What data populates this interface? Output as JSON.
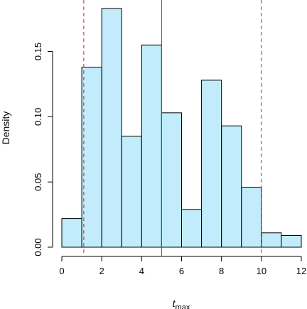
{
  "chart_data": {
    "type": "histogram",
    "title": "",
    "xlabel": "t",
    "xlabel_subscript": "max",
    "ylabel": "Density",
    "xlim": [
      0,
      12
    ],
    "ylim": [
      0,
      0.18
    ],
    "x_ticks": [
      0,
      2,
      4,
      6,
      8,
      10,
      12
    ],
    "y_ticks": [
      0.0,
      0.05,
      0.1,
      0.15
    ],
    "y_tick_labels": [
      "0.00",
      "0.05",
      "0.10",
      "0.15"
    ],
    "bin_edges": [
      0,
      1,
      2,
      3,
      4,
      5,
      6,
      7,
      8,
      9,
      10,
      11,
      12
    ],
    "values": [
      0.022,
      0.138,
      0.183,
      0.085,
      0.155,
      0.103,
      0.029,
      0.128,
      0.093,
      0.046,
      0.011,
      0.009
    ],
    "bar_color": "#c2ecfb",
    "vertical_lines": [
      {
        "x": 1.1,
        "style": "dashed",
        "color": "#cc2222"
      },
      {
        "x": 5.0,
        "style": "solid",
        "color": "#cc2222"
      },
      {
        "x": 10.0,
        "style": "dashed",
        "color": "#cc2222"
      }
    ],
    "grid": false
  }
}
